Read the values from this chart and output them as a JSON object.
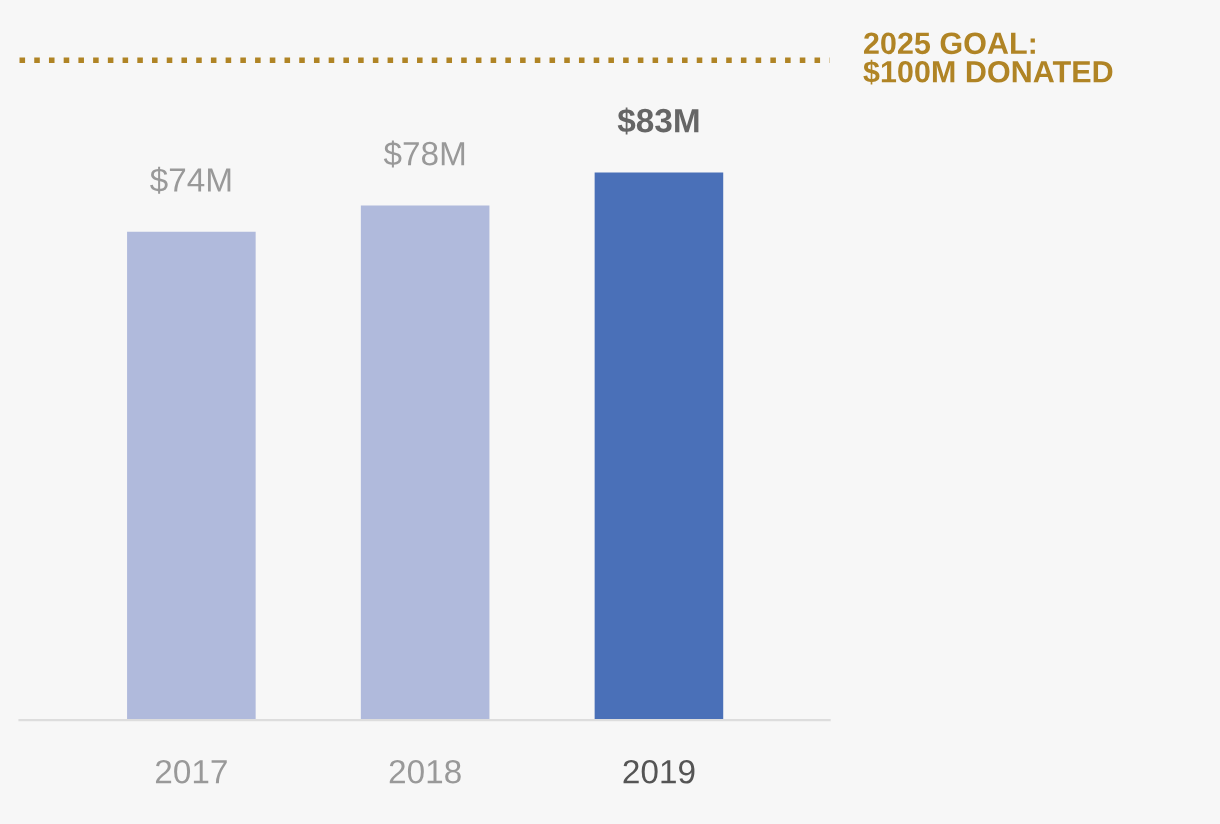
{
  "chart_data": {
    "type": "bar",
    "categories": [
      "2017",
      "2018",
      "2019"
    ],
    "values": [
      74,
      78,
      83
    ],
    "colors": [
      "#b0badc",
      "#b0badc",
      "#4a70b8"
    ],
    "value_labels": [
      "$74M",
      "$78M",
      "$83M"
    ],
    "tick_labels": "x",
    "grid": false,
    "ref_lines": [
      {
        "axis": "y",
        "value": 100,
        "label": "2025 GOAL:\n$100M DONATED",
        "color": "#b08425",
        "line_style": "dotted"
      }
    ]
  }
}
